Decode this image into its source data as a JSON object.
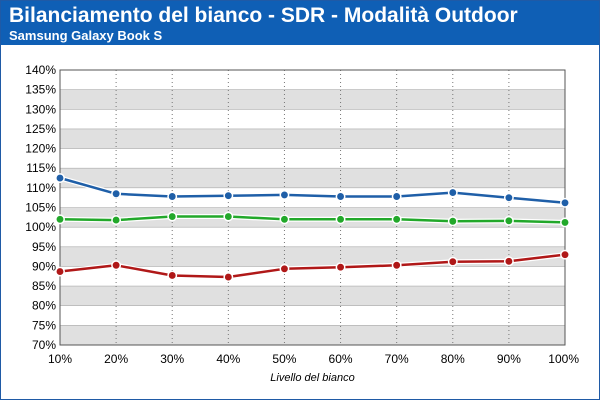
{
  "header": {
    "title": "Bilanciamento del bianco - SDR - Modalità Outdoor",
    "subtitle": "Samsung Galaxy Book S"
  },
  "colors": {
    "header_bg": "#0f5fb5",
    "band_gray": "#e0e0e0",
    "band_white": "#ffffff"
  },
  "chart_data": {
    "type": "line",
    "title": "Bilanciamento del bianco - SDR - Modalità Outdoor",
    "subtitle": "Samsung Galaxy Book S",
    "xlabel": "Livello del bianco",
    "ylabel": "",
    "categories": [
      "10%",
      "20%",
      "30%",
      "40%",
      "50%",
      "60%",
      "70%",
      "80%",
      "90%",
      "100%"
    ],
    "yticks": [
      "70%",
      "75%",
      "80%",
      "85%",
      "90%",
      "95%",
      "100%",
      "105%",
      "110%",
      "115%",
      "120%",
      "125%",
      "130%",
      "135%",
      "140%"
    ],
    "ylim": [
      70,
      140
    ],
    "grid": true,
    "legend": "none",
    "series": [
      {
        "color": "#1f5fa8",
        "values": [
          112.5,
          108.5,
          107.8,
          108.0,
          108.2,
          107.8,
          107.8,
          108.8,
          107.5,
          106.2
        ]
      },
      {
        "color": "#22a82a",
        "values": [
          102.0,
          101.8,
          102.7,
          102.7,
          102.0,
          102.0,
          102.0,
          101.5,
          101.6,
          101.2
        ]
      },
      {
        "color": "#b01818",
        "values": [
          88.7,
          90.3,
          87.7,
          87.3,
          89.4,
          89.8,
          90.3,
          91.2,
          91.3,
          93.0
        ]
      }
    ]
  }
}
